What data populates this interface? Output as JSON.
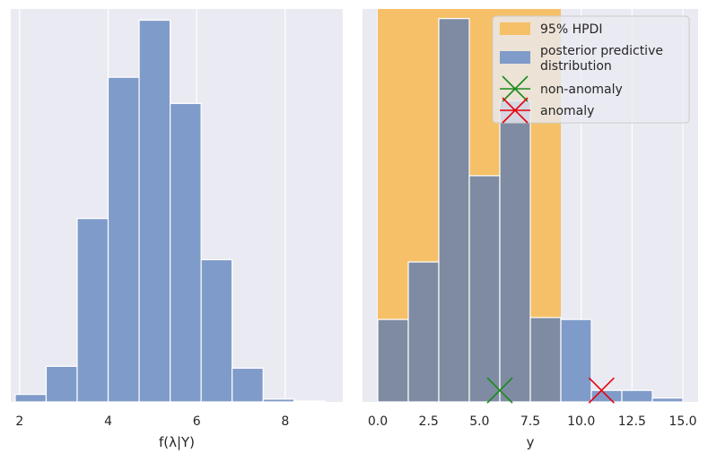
{
  "chart_data": [
    {
      "type": "bar",
      "subtype": "histogram",
      "xlabel": "f(λ|Y)",
      "ylabel": "",
      "xlim": [
        1.8,
        9.3
      ],
      "ylim": [
        0,
        420
      ],
      "bins": [
        {
          "x0": 1.9,
          "x1": 2.6,
          "count": 8
        },
        {
          "x0": 2.6,
          "x1": 3.3,
          "count": 38
        },
        {
          "x0": 3.3,
          "x1": 4.0,
          "count": 196
        },
        {
          "x0": 4.0,
          "x1": 4.7,
          "count": 347
        },
        {
          "x0": 4.7,
          "x1": 5.4,
          "count": 408
        },
        {
          "x0": 5.4,
          "x1": 6.1,
          "count": 319
        },
        {
          "x0": 6.1,
          "x1": 6.8,
          "count": 152
        },
        {
          "x0": 6.8,
          "x1": 7.5,
          "count": 36
        },
        {
          "x0": 7.5,
          "x1": 8.2,
          "count": 3
        },
        {
          "x0": 8.2,
          "x1": 8.9,
          "count": 1
        }
      ],
      "xticks": [
        2,
        4,
        6,
        8
      ],
      "xtick_labels": [
        "2",
        "4",
        "6",
        "8"
      ],
      "bar_color": "#7f9bc9"
    },
    {
      "type": "bar",
      "subtype": "histogram",
      "xlabel": "y",
      "ylabel": "",
      "xlim": [
        -0.75,
        15.75
      ],
      "ylim": [
        0,
        0.205
      ],
      "bins": [
        {
          "x0": 0.0,
          "x1": 1.5,
          "density": 0.043
        },
        {
          "x0": 1.5,
          "x1": 3.0,
          "density": 0.073
        },
        {
          "x0": 3.0,
          "x1": 4.5,
          "density": 0.2
        },
        {
          "x0": 4.5,
          "x1": 6.0,
          "density": 0.118
        },
        {
          "x0": 6.0,
          "x1": 7.5,
          "density": 0.157
        },
        {
          "x0": 7.5,
          "x1": 9.0,
          "density": 0.044
        },
        {
          "x0": 9.0,
          "x1": 10.5,
          "density": 0.043
        },
        {
          "x0": 10.5,
          "x1": 12.0,
          "density": 0.006
        },
        {
          "x0": 12.0,
          "x1": 13.5,
          "density": 0.006
        },
        {
          "x0": 13.5,
          "x1": 15.0,
          "density": 0.002
        }
      ],
      "hpdi_95": [
        0,
        9
      ],
      "points": [
        {
          "label": "non-anomaly",
          "x": 6,
          "y": 0.006,
          "marker": "x",
          "color": "#1a8a1a"
        },
        {
          "label": "anomaly",
          "x": 11,
          "y": 0.006,
          "marker": "x",
          "color": "#e8000b"
        }
      ],
      "xticks": [
        0,
        2.5,
        5,
        7.5,
        10,
        12.5,
        15
      ],
      "xtick_labels": [
        "0.0",
        "2.5",
        "5.0",
        "7.5",
        "10.0",
        "12.5",
        "15.0"
      ],
      "legend": {
        "placement": "top-right",
        "entries": [
          {
            "label": "95% HPDI",
            "kind": "patch",
            "color": "#f5c067"
          },
          {
            "label": "posterior predictive\ndistribution",
            "kind": "patch",
            "color": "#7f9bc9"
          },
          {
            "label": "non-anomaly",
            "kind": "marker",
            "color": "#1a8a1a"
          },
          {
            "label": "anomaly",
            "kind": "marker",
            "color": "#e8000b"
          }
        ]
      },
      "bar_color": "#7f9bc9",
      "hpdi_color": "#f5c067",
      "overlap_color": "#7e8ba2"
    }
  ],
  "style": {
    "axes_bg": "#eaeaf2",
    "grid_color": "#ffffff",
    "text_color": "#262626"
  }
}
